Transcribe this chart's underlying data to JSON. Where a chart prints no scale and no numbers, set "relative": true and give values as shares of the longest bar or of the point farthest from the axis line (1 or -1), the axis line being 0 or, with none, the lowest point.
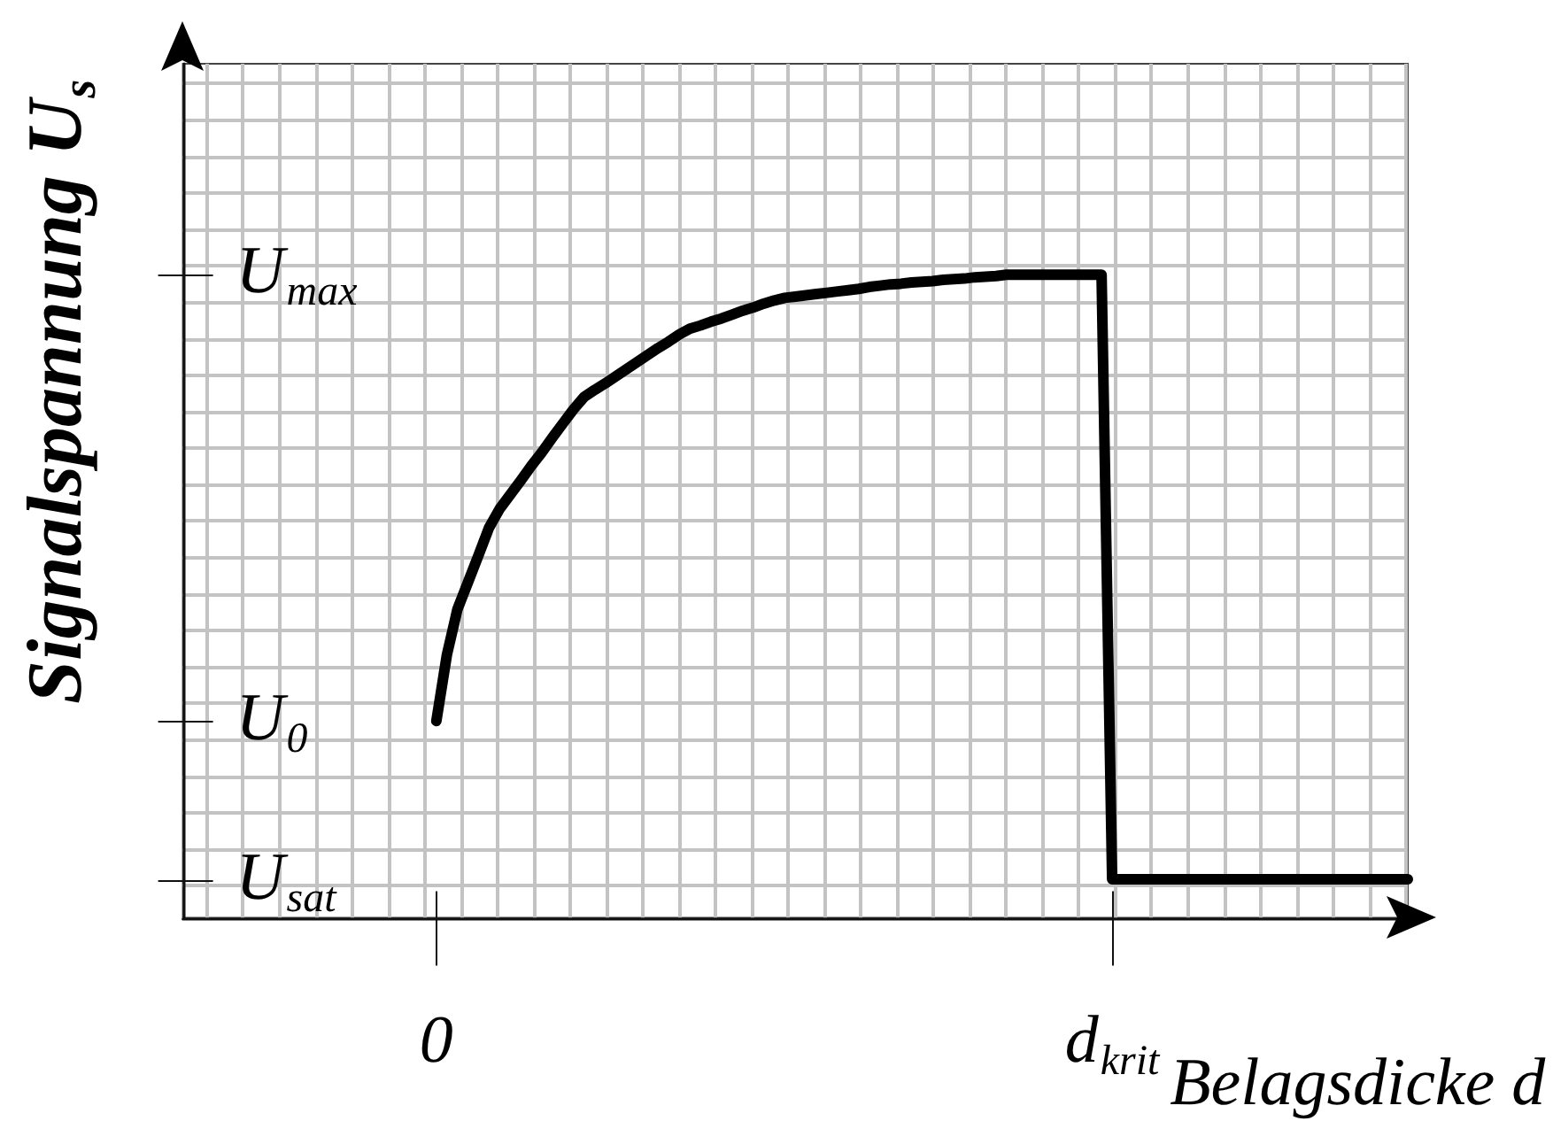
{
  "chart_data": {
    "type": "line",
    "xlabel": "Belagsdicke d",
    "ylabel": "Signalspannung U$_{s}$",
    "relative": true,
    "categories": [
      null,
      null,
      null,
      null,
      null,
      null,
      null,
      null,
      null,
      null,
      null,
      null,
      null,
      null,
      null,
      null,
      null,
      null,
      null,
      null,
      null,
      null,
      null,
      null,
      "0",
      null,
      null,
      null,
      null,
      null,
      null,
      null,
      null,
      null,
      null,
      null,
      null,
      null,
      null,
      null,
      null,
      null,
      null,
      null,
      null,
      null,
      null,
      null,
      null,
      null,
      null,
      null,
      null,
      null,
      null,
      null,
      null,
      null,
      null,
      null,
      null,
      null,
      null,
      null,
      null,
      null,
      null,
      null,
      null,
      null,
      null,
      null,
      null,
      null,
      null,
      null,
      null,
      null,
      null,
      null,
      null,
      null,
      null,
      null,
      null,
      null,
      null,
      null,
      "d$_{krit}$",
      null,
      null,
      null,
      null,
      null,
      null,
      null,
      null,
      null,
      null,
      null,
      null,
      null,
      null,
      null,
      null,
      null,
      null,
      null,
      null,
      null,
      null,
      null,
      null,
      null,
      null,
      null,
      null
    ],
    "values": [
      null,
      null,
      null,
      null,
      null,
      null,
      null,
      null,
      null,
      null,
      null,
      null,
      null,
      null,
      null,
      null,
      null,
      null,
      null,
      null,
      null,
      null,
      null,
      null,
      0.306,
      0.409,
      0.48,
      0.522,
      0.564,
      0.607,
      0.636,
      0.658,
      0.68,
      0.703,
      0.724,
      0.747,
      0.769,
      0.791,
      0.81,
      0.821,
      0.831,
      0.842,
      0.853,
      0.864,
      0.875,
      0.886,
      0.896,
      0.907,
      0.916,
      0.921,
      0.927,
      0.932,
      0.938,
      0.944,
      0.949,
      0.955,
      0.96,
      0.964,
      0.966,
      0.968,
      0.97,
      0.972,
      0.974,
      0.976,
      0.978,
      0.981,
      0.983,
      0.985,
      0.986,
      0.988,
      0.989,
      0.99,
      0.992,
      0.993,
      0.994,
      0.996,
      0.997,
      0.998,
      1,
      1,
      1,
      1,
      1,
      1,
      1,
      1,
      1,
      1,
      0.06,
      0.06,
      0.06,
      0.06,
      0.06,
      0.06,
      0.06,
      0.06,
      0.06,
      0.06,
      0.06,
      0.06,
      0.06,
      0.06,
      0.06,
      0.06,
      0.06,
      0.06,
      0.06,
      0.06,
      0.06,
      0.06,
      0.06,
      0.06,
      0.06,
      0.06,
      0.06,
      0.06,
      0.06
    ],
    "color": "#000000",
    "annotations": [
      "U$_{max}$",
      "U$_{0}$",
      "U$_{sat}$"
    ],
    "grid": true
  }
}
